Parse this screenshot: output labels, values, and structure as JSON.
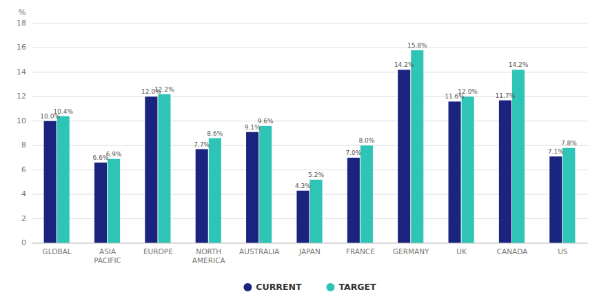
{
  "chart_data": {
    "type": "bar",
    "ylabel": "%",
    "categories": [
      "GLOBAL",
      "ASIA\nPACIFIC",
      "EUROPE",
      "NORTH\nAMERICA",
      "AUSTRALIA",
      "JAPAN",
      "FRANCE",
      "GERMANY",
      "UK",
      "CANADA",
      "US"
    ],
    "series": [
      {
        "name": "CURRENT",
        "color": "#1a237e",
        "values": [
          10.0,
          6.6,
          12.0,
          7.7,
          9.1,
          4.3,
          7.0,
          14.2,
          11.6,
          11.7,
          7.1
        ],
        "value_labels": [
          "10.0%",
          "6.6%",
          "12.0%",
          "7.7%",
          "9.1%",
          "4.3%",
          "7.0%",
          "14.2%",
          "11.6%",
          "11.7%",
          "7.1%"
        ]
      },
      {
        "name": "TARGET",
        "color": "#2ec4b6",
        "values": [
          10.4,
          6.9,
          12.2,
          8.6,
          9.6,
          5.2,
          8.0,
          15.8,
          12.0,
          14.2,
          7.8
        ],
        "value_labels": [
          "10.4%",
          "6.9%",
          "12.2%",
          "8.6%",
          "9.6%",
          "5.2%",
          "8.0%",
          "15.8%",
          "12.0%",
          "14.2%",
          "7.8%"
        ]
      }
    ],
    "ylim": [
      0,
      18
    ],
    "yticks": [
      0,
      2,
      4,
      6,
      8,
      10,
      12,
      14,
      16,
      18
    ],
    "grid": true,
    "data_labels": true,
    "legend": "bottom"
  }
}
